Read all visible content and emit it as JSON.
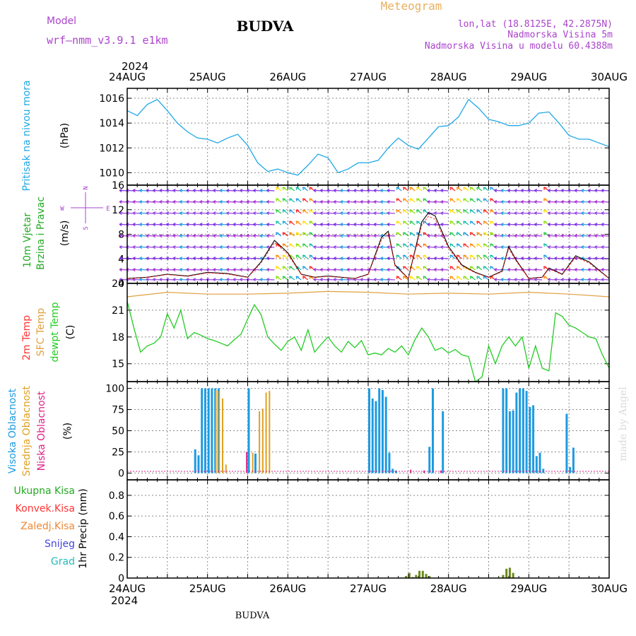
{
  "header": {
    "model_label": "Model",
    "model_name": "wrf—nmm_v3.9.1  e1km",
    "title": "BUDVA",
    "meteogram_label": "Meteogram",
    "location": "lon,lat (18.8125E, 42.2875N)",
    "elevation": "Nadmorska Visina 5m",
    "model_elevation": "Nadmorska Visina u modelu 60.4388m"
  },
  "footer": {
    "title": "BUDVA",
    "credit": "made by Angel"
  },
  "colors": {
    "pressure": "#1fa8e6",
    "dewpoint": "#22cc22",
    "sfc_temp": "#e0a040",
    "temp2m": "#ff3333",
    "cloud_high": "#1e9be0",
    "cloud_mid": "#e0a020",
    "cloud_low": "#dd2288",
    "precip_total": "#6a8a1a",
    "grid": "#888888",
    "wind_label": "#aa44cc"
  },
  "time_axis": {
    "year_top": "2024",
    "year_bottom": "2024",
    "days": [
      "24AUG",
      "25AUG",
      "26AUG",
      "27AUG",
      "28AUG",
      "29AUG",
      "30AUG"
    ]
  },
  "panels": {
    "pressure": {
      "ylabel_left": "Pritisak na nivou mora",
      "unit": "(hPa)",
      "ticks": [
        "1010",
        "1012",
        "1014",
        "1016"
      ]
    },
    "wind": {
      "ylabel_left_1": "10m Vjetar",
      "ylabel_left_2": "Brzina i Pravac",
      "unit": "(m/s)",
      "compass": {
        "n": "N",
        "e": "E",
        "w": "W",
        "s": "S"
      },
      "ticks": [
        "0",
        "4",
        "8",
        "12",
        "16"
      ]
    },
    "temperature": {
      "label_2m": "2m Temp",
      "label_sfc": "SFC Temp",
      "label_dew": "dewpt Temp",
      "unit": "(C)",
      "ticks": [
        "15",
        "18",
        "21",
        "24"
      ]
    },
    "cloud": {
      "label_high": "Visoka Oblacnost",
      "label_mid": "Srednja Oblacnost",
      "label_low": "Niska Oblacnost",
      "unit": "(%)",
      "ticks": [
        "0",
        "25",
        "50",
        "75",
        "100"
      ]
    },
    "precip": {
      "legend": [
        "Ukupna Kisa",
        "Konvek.Kisa",
        "Zaledj.Kisa",
        "Snijeg",
        "Grad"
      ],
      "ylabel": "1hr Precip (mm)",
      "ticks": [
        "0",
        "0.2",
        "0.4",
        "0.6",
        "0.8"
      ]
    }
  },
  "chart_data": [
    {
      "type": "line",
      "x_unit": "hours since 24AUG 00UTC",
      "ylim": [
        1009,
        1016.8
      ],
      "series": [
        {
          "x": [
            0,
            3,
            6,
            9,
            12,
            15,
            18,
            21,
            24,
            27,
            30,
            33,
            36,
            39,
            42,
            45,
            48,
            51,
            54,
            57,
            60,
            63,
            66,
            69,
            72,
            75,
            78,
            81,
            84,
            87,
            90,
            93,
            96,
            99,
            102,
            105,
            108,
            111,
            114,
            117,
            120,
            123,
            126,
            129,
            132,
            135,
            138,
            141,
            144
          ],
          "y": [
            1015.0,
            1014.6,
            1015.5,
            1015.9,
            1015.0,
            1014.0,
            1013.3,
            1012.8,
            1012.7,
            1012.4,
            1012.8,
            1013.1,
            1012.2,
            1010.8,
            1010.1,
            1010.3,
            1010.0,
            1009.8,
            1010.6,
            1011.5,
            1011.2,
            1010.0,
            1010.3,
            1010.8,
            1010.8,
            1011.0,
            1012.0,
            1012.8,
            1012.2,
            1011.9,
            1012.8,
            1013.7,
            1013.8,
            1014.5,
            1015.9,
            1015.2,
            1014.3,
            1014.1,
            1013.8,
            1013.8,
            1014.0,
            1014.8,
            1014.9,
            1014.0,
            1013.0,
            1012.7,
            1012.7,
            1012.4,
            1012.1
          ]
        }
      ]
    },
    {
      "type": "line",
      "x_unit": "hours since 24AUG 00UTC",
      "ylim": [
        0,
        16
      ],
      "series": [
        {
          "x": [
            0,
            6,
            12,
            18,
            24,
            30,
            36,
            40,
            44,
            48,
            52,
            56,
            60,
            64,
            68,
            72,
            76,
            78,
            80,
            84,
            88,
            90,
            92,
            96,
            100,
            104,
            108,
            112,
            114,
            116,
            120,
            124,
            126,
            130,
            134,
            138,
            144
          ],
          "y": [
            0.8,
            1.0,
            1.5,
            1.2,
            1.8,
            1.6,
            1.0,
            3.5,
            7.0,
            5.0,
            1.5,
            1.0,
            1.2,
            1.0,
            0.8,
            1.5,
            7.5,
            8.5,
            3.0,
            0.8,
            10.0,
            11.5,
            11.0,
            6.0,
            3.0,
            1.8,
            1.0,
            2.0,
            6.0,
            4.0,
            0.8,
            1.0,
            2.5,
            1.5,
            4.5,
            3.5,
            0.8
          ]
        }
      ]
    },
    {
      "type": "line",
      "x_unit": "hours since 24AUG 00UTC",
      "ylim": [
        13,
        24
      ],
      "series": [
        {
          "name": "dewpt Temp",
          "x": [
            0,
            2,
            4,
            6,
            8,
            10,
            12,
            14,
            16,
            18,
            20,
            22,
            24,
            26,
            28,
            30,
            32,
            34,
            36,
            38,
            40,
            42,
            44,
            46,
            48,
            50,
            52,
            54,
            56,
            58,
            60,
            62,
            64,
            66,
            68,
            70,
            72,
            74,
            76,
            78,
            80,
            82,
            84,
            86,
            88,
            90,
            92,
            94,
            96,
            98,
            100,
            102,
            104,
            106,
            108,
            110,
            112,
            114,
            116,
            118,
            120,
            122,
            124,
            126,
            128,
            130,
            132,
            134,
            136,
            138,
            140,
            142,
            144
          ],
          "y": [
            22.0,
            19.0,
            16.3,
            17.0,
            17.3,
            18.0,
            20.6,
            19.0,
            21.0,
            17.8,
            18.5,
            18.2,
            17.8,
            17.6,
            17.3,
            17.0,
            17.7,
            18.3,
            20.0,
            21.6,
            20.5,
            18.0,
            17.2,
            16.5,
            17.5,
            18.0,
            16.5,
            18.8,
            16.3,
            17.2,
            18.0,
            17.0,
            16.3,
            17.5,
            16.8,
            17.6,
            16.0,
            16.2,
            16.0,
            16.7,
            16.3,
            17.0,
            16.0,
            17.7,
            19.0,
            18.0,
            16.5,
            16.8,
            16.2,
            16.6,
            16.0,
            15.8,
            13.0,
            13.5,
            17.0,
            15.0,
            17.0,
            18.0,
            17.0,
            18.0,
            14.5,
            17.0,
            14.5,
            14.2,
            20.7,
            20.3,
            19.3,
            19.0,
            18.5,
            18.0,
            17.8,
            16.0,
            14.5
          ]
        },
        {
          "name": "SFC Temp",
          "x": [
            0,
            12,
            24,
            36,
            48,
            60,
            72,
            84,
            96,
            108,
            120,
            132,
            144
          ],
          "y": [
            22.5,
            23.0,
            22.8,
            22.8,
            22.9,
            23.1,
            23.0,
            22.8,
            22.9,
            22.8,
            23.0,
            22.8,
            22.5
          ]
        }
      ]
    },
    {
      "type": "bar",
      "x_unit": "hours since 24AUG 00UTC",
      "ylim": [
        0,
        100
      ],
      "series": [
        {
          "name": "Visoka Oblacnost",
          "x": [
            20,
            21,
            22,
            23,
            24,
            25,
            26,
            27,
            36,
            38,
            72,
            73,
            74,
            75,
            76,
            77,
            78,
            79,
            80,
            90,
            91,
            94,
            112,
            113,
            114,
            115,
            116,
            117,
            118,
            119,
            120,
            121,
            122,
            123,
            124,
            131,
            132,
            133
          ],
          "values": [
            28,
            21,
            100,
            100,
            100,
            100,
            100,
            100,
            100,
            23,
            100,
            88,
            85,
            100,
            98,
            90,
            24,
            5,
            3,
            31,
            100,
            73,
            100,
            100,
            73,
            74,
            95,
            100,
            100,
            97,
            78,
            80,
            20,
            24,
            5,
            70,
            7,
            30
          ]
        },
        {
          "name": "Srednja Oblacnost",
          "x": [
            26,
            27,
            28,
            29,
            37,
            39,
            40,
            41,
            42
          ],
          "values": [
            98,
            97,
            88,
            10,
            24,
            73,
            76,
            95,
            97
          ]
        },
        {
          "name": "Niska Oblacnost",
          "x": [
            35,
            84,
            88,
            93
          ],
          "values": [
            25,
            4,
            3,
            3
          ]
        }
      ]
    },
    {
      "type": "bar",
      "x_unit": "hours since 24AUG 00UTC",
      "ylim": [
        0,
        0.95
      ],
      "series": [
        {
          "name": "Ukupna Kisa",
          "x": [
            83,
            84,
            85,
            86,
            87,
            88,
            89,
            90,
            112,
            113,
            114,
            115
          ],
          "values": [
            0.02,
            0.05,
            0.01,
            0.03,
            0.07,
            0.07,
            0.04,
            0.02,
            0.03,
            0.09,
            0.1,
            0.05
          ]
        }
      ]
    }
  ]
}
